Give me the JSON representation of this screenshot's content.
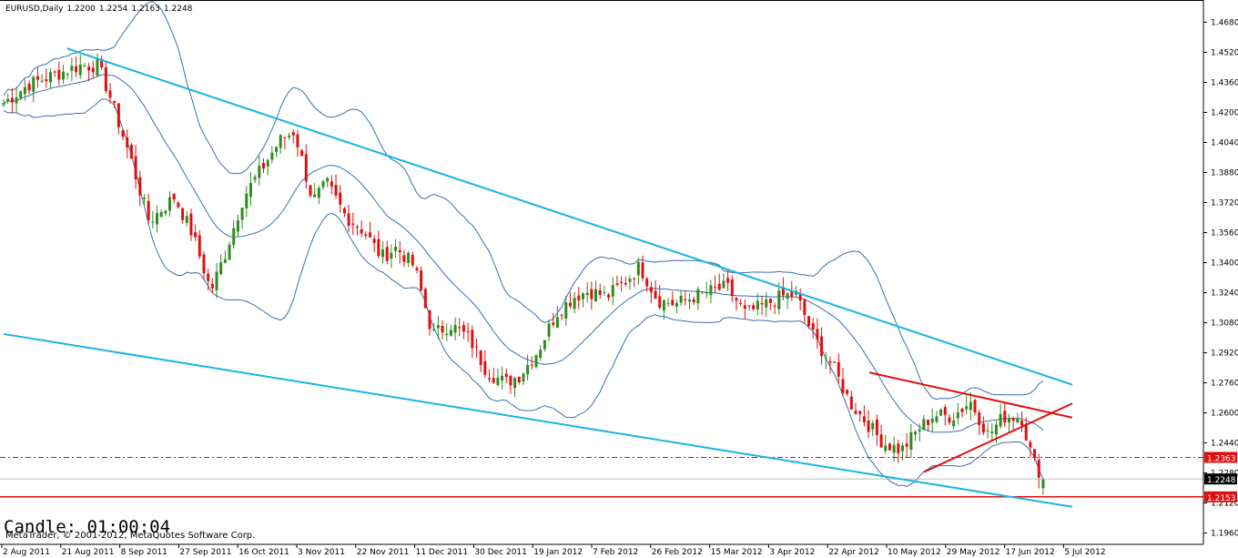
{
  "header": {
    "symbol_timeframe": "EURUSD,Daily",
    "open": "1.2200",
    "high": "1.2254",
    "low": "1.2163",
    "close": "1.2248"
  },
  "candle_timer": "Candle:  01:00:04",
  "copyright": "MetaTrader, © 2001-2012, MetaQuotes Software Corp.",
  "colors": {
    "bull": "#2e8b1e",
    "bear": "#e01010",
    "bands": "#3a6fb0",
    "trendline_blue": "#1ab3e6",
    "trendline_red": "#e01010",
    "level_line": "#e01010",
    "grid_text": "#000000"
  },
  "chart_data": {
    "type": "candlestick",
    "symbol": "EURUSD",
    "timeframe": "Daily",
    "ylim": [
      1.19,
      1.475
    ],
    "y_ticks": [
      "1.4680",
      "1.4520",
      "1.4360",
      "1.4200",
      "1.4040",
      "1.3880",
      "1.3720",
      "1.3560",
      "1.3400",
      "1.3240",
      "1.3080",
      "1.2920",
      "1.2760",
      "1.2600",
      "1.2440",
      "1.2280",
      "1.2120",
      "1.1960"
    ],
    "x_ticks": [
      "2 Aug 2011",
      "21 Aug 2011",
      "8 Sep 2011",
      "27 Sep 2011",
      "16 Oct 2011",
      "3 Nov 2011",
      "22 Nov 2011",
      "11 Dec 2011",
      "30 Dec 2011",
      "19 Jan 2012",
      "7 Feb 2012",
      "26 Feb 2012",
      "15 Mar 2012",
      "3 Apr 2012",
      "22 Apr 2012",
      "10 May 2012",
      "29 May 2012",
      "17 Jun 2012",
      "5 Jul 2012"
    ],
    "bar_count": 245,
    "price_path": [
      [
        0,
        1.425
      ],
      [
        7,
        1.435
      ],
      [
        14,
        1.44
      ],
      [
        21,
        1.445
      ],
      [
        26,
        1.445
      ],
      [
        29,
        1.43
      ],
      [
        35,
        1.395
      ],
      [
        40,
        1.362
      ],
      [
        47,
        1.375
      ],
      [
        52,
        1.355
      ],
      [
        57,
        1.325
      ],
      [
        61,
        1.345
      ],
      [
        66,
        1.375
      ],
      [
        71,
        1.39
      ],
      [
        76,
        1.405
      ],
      [
        80,
        1.41
      ],
      [
        85,
        1.373
      ],
      [
        89,
        1.382
      ],
      [
        94,
        1.365
      ],
      [
        99,
        1.357
      ],
      [
        104,
        1.343
      ],
      [
        108,
        1.348
      ],
      [
        113,
        1.338
      ],
      [
        118,
        1.302
      ],
      [
        123,
        1.307
      ],
      [
        128,
        1.3
      ],
      [
        133,
        1.282
      ],
      [
        138,
        1.276
      ],
      [
        142,
        1.28
      ],
      [
        147,
        1.293
      ],
      [
        152,
        1.313
      ],
      [
        157,
        1.322
      ],
      [
        161,
        1.325
      ],
      [
        166,
        1.322
      ],
      [
        171,
        1.33
      ],
      [
        175,
        1.338
      ],
      [
        180,
        1.32
      ],
      [
        185,
        1.318
      ],
      [
        190,
        1.322
      ],
      [
        195,
        1.325
      ],
      [
        199,
        1.327
      ],
      [
        204,
        1.313
      ],
      [
        209,
        1.317
      ],
      [
        214,
        1.322
      ],
      [
        218,
        1.323
      ],
      [
        223,
        1.3
      ],
      [
        228,
        1.285
      ],
      [
        233,
        1.265
      ],
      [
        237,
        1.256
      ],
      [
        242,
        1.244
      ],
      [
        247,
        1.24
      ],
      [
        252,
        1.252
      ],
      [
        256,
        1.259
      ],
      [
        261,
        1.258
      ],
      [
        266,
        1.266
      ],
      [
        271,
        1.248
      ],
      [
        275,
        1.258
      ],
      [
        280,
        1.258
      ],
      [
        283,
        1.236
      ],
      [
        286,
        1.225
      ]
    ],
    "last_bar": {
      "open": 1.22,
      "high": 1.2254,
      "low": 1.2163,
      "close": 1.2248
    },
    "indicators": [
      {
        "name": "Bollinger Bands",
        "color": "bands"
      }
    ],
    "horizontal_levels": [
      {
        "price": 1.2363,
        "label": "1.2363",
        "style": "dash-dot"
      },
      {
        "price": 1.2153,
        "label": "1.2153",
        "style": "solid"
      },
      {
        "price": 1.2248,
        "label": "1.2248",
        "style": "current-price"
      }
    ],
    "trendlines": [
      {
        "color": "trendline_blue",
        "points": [
          [
            "2011-08-23",
            1.454
          ],
          [
            "2012-07-20",
            1.275
          ]
        ]
      },
      {
        "color": "trendline_blue",
        "points": [
          [
            "2011-08-02",
            1.302
          ],
          [
            "2012-07-20",
            1.21
          ]
        ]
      },
      {
        "color": "trendline_red",
        "points": [
          [
            "2012-05-14",
            1.2815
          ],
          [
            "2012-07-20",
            1.2575
          ]
        ]
      },
      {
        "color": "trendline_red",
        "points": [
          [
            "2012-06-01",
            1.2285
          ],
          [
            "2012-07-20",
            1.265
          ]
        ]
      }
    ],
    "grid": false,
    "legend": "none"
  }
}
